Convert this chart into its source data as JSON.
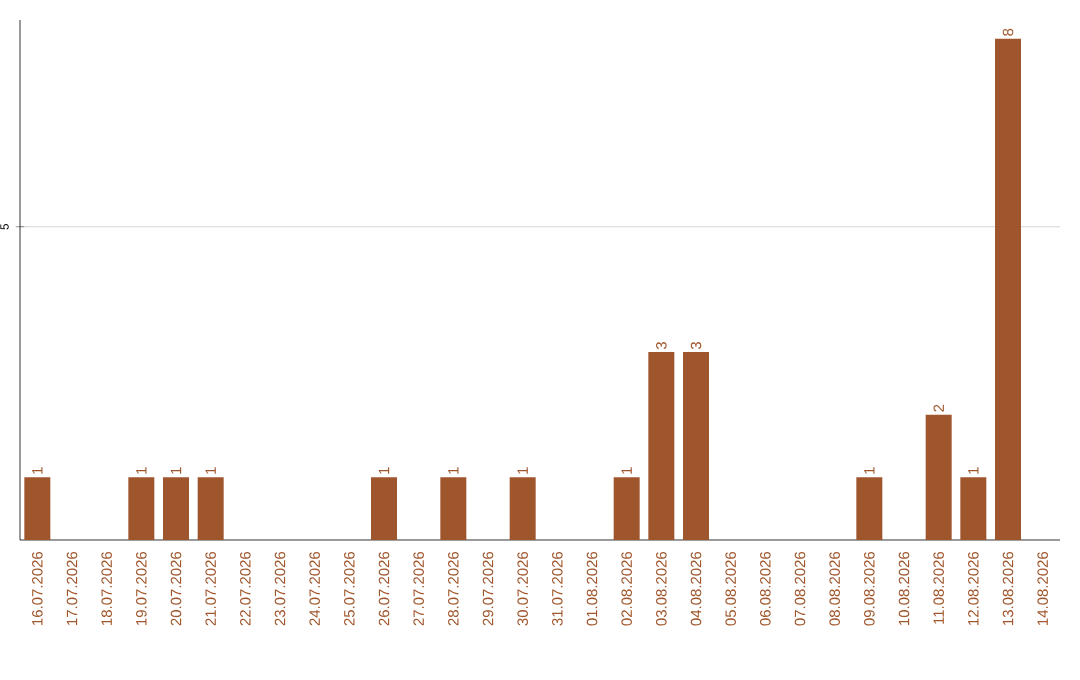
{
  "chart_data": {
    "type": "bar",
    "categories": [
      "16.07.2026",
      "17.07.2026",
      "18.07.2026",
      "19.07.2026",
      "20.07.2026",
      "21.07.2026",
      "22.07.2026",
      "23.07.2026",
      "24.07.2026",
      "25.07.2026",
      "26.07.2026",
      "27.07.2026",
      "28.07.2026",
      "29.07.2026",
      "30.07.2026",
      "31.07.2026",
      "01.08.2026",
      "02.08.2026",
      "03.08.2026",
      "04.08.2026",
      "05.08.2026",
      "06.08.2026",
      "07.08.2026",
      "08.08.2026",
      "09.08.2026",
      "10.08.2026",
      "11.08.2026",
      "12.08.2026",
      "13.08.2026",
      "14.08.2026"
    ],
    "values": [
      1,
      0,
      0,
      1,
      1,
      1,
      0,
      0,
      0,
      0,
      1,
      0,
      1,
      0,
      1,
      0,
      0,
      1,
      3,
      3,
      0,
      0,
      0,
      0,
      1,
      0,
      2,
      1,
      8,
      0
    ],
    "value_labels": [
      "1",
      null,
      null,
      "1",
      "1",
      "1",
      null,
      null,
      null,
      null,
      "1",
      null,
      "1",
      null,
      "1",
      null,
      null,
      "1",
      "3",
      "3",
      null,
      null,
      null,
      null,
      "1",
      null,
      "2",
      "1",
      "8",
      null
    ],
    "color": "#a0562c",
    "ylim": [
      0,
      8.3
    ],
    "yticks": [
      5
    ],
    "grid": "y"
  }
}
